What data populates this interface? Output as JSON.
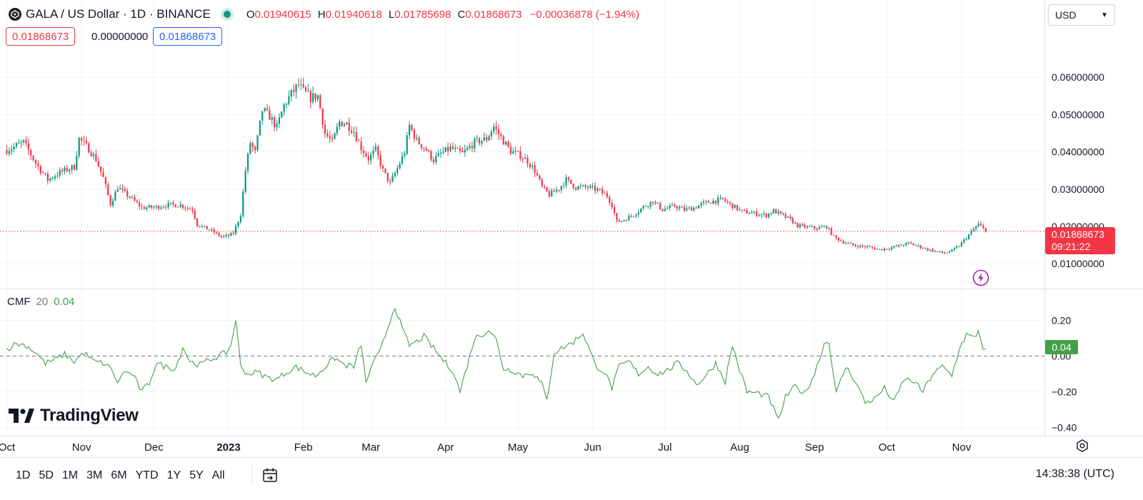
{
  "header": {
    "title": "GALA / US Dollar · 1D · BINANCE",
    "ohlc": [
      {
        "k": "O",
        "v": "0.01940615"
      },
      {
        "k": "H",
        "v": "0.01940618"
      },
      {
        "k": "L",
        "v": "0.01785698"
      },
      {
        "k": "C",
        "v": "0.01868673"
      }
    ],
    "change": "−0.00036878 (−1.94%)",
    "pill_bid": "0.01868673",
    "pill_spread": "0.00000000",
    "pill_ask": "0.01868673",
    "currency": "USD",
    "status_color": "#089981"
  },
  "price_tag": {
    "price": "0.01868673",
    "countdown": "09:21:22"
  },
  "cmf": {
    "label": "CMF",
    "length": "20",
    "value": "0.04",
    "tag": "0.04"
  },
  "logo": {
    "text": "TradingView"
  },
  "bottom_bar": {
    "ranges": [
      "1D",
      "5D",
      "1M",
      "3M",
      "6M",
      "YTD",
      "1Y",
      "5Y",
      "All"
    ],
    "clock": "14:38:38 (UTC)"
  },
  "icons": {
    "symbol": "gala-logo-icon",
    "calendar": "calendar-range-icon",
    "bolt": "bolt-icon",
    "settings": "settings-icon"
  },
  "colors": {
    "up": "#089981",
    "down": "#f23645",
    "cmf_line": "#43a047",
    "current_price": "#f23645"
  },
  "chart_data": [
    {
      "type": "candlestick",
      "title": "GALA / US Dollar · 1D · BINANCE",
      "y_ticks": [
        "0.06000000",
        "0.05000000",
        "0.04000000",
        "0.03000000",
        "0.02000000",
        "0.01000000"
      ],
      "y_tick_values": [
        0.06,
        0.05,
        0.04,
        0.03,
        0.02,
        0.01
      ],
      "ylim": [
        0.0065,
        0.0695
      ],
      "x_ticks": [
        {
          "label": "Oct",
          "day": -92
        },
        {
          "label": "Nov",
          "day": -61
        },
        {
          "label": "Dec",
          "day": -31
        },
        {
          "label": "2023",
          "day": 0,
          "bold": true
        },
        {
          "label": "Feb",
          "day": 31
        },
        {
          "label": "Mar",
          "day": 59
        },
        {
          "label": "Apr",
          "day": 90
        },
        {
          "label": "May",
          "day": 120
        },
        {
          "label": "Jun",
          "day": 151
        },
        {
          "label": "Jul",
          "day": 181
        },
        {
          "label": "Aug",
          "day": 212
        },
        {
          "label": "Sep",
          "day": 243
        },
        {
          "label": "Oct",
          "day": 273
        },
        {
          "label": "Nov",
          "day": 304
        }
      ],
      "x_day_index_origin": "2023-01-01",
      "current_price": 0.01868673,
      "closes_key": [
        [
          -92,
          0.0405
        ],
        [
          -85,
          0.0425
        ],
        [
          -80,
          0.037
        ],
        [
          -75,
          0.0325
        ],
        [
          -70,
          0.0345
        ],
        [
          -64,
          0.036
        ],
        [
          -62,
          0.0435
        ],
        [
          -58,
          0.0408
        ],
        [
          -55,
          0.038
        ],
        [
          -52,
          0.033
        ],
        [
          -49,
          0.026
        ],
        [
          -46,
          0.0305
        ],
        [
          -40,
          0.0273
        ],
        [
          -36,
          0.025
        ],
        [
          -30,
          0.0252
        ],
        [
          -25,
          0.0258
        ],
        [
          -20,
          0.0257
        ],
        [
          -15,
          0.0245
        ],
        [
          -13,
          0.0205
        ],
        [
          -7,
          0.0188
        ],
        [
          -3,
          0.0172
        ],
        [
          0,
          0.0175
        ],
        [
          2,
          0.0182
        ],
        [
          5,
          0.0232
        ],
        [
          7,
          0.035
        ],
        [
          9,
          0.0425
        ],
        [
          11,
          0.0398
        ],
        [
          14,
          0.0512
        ],
        [
          17,
          0.0495
        ],
        [
          20,
          0.0465
        ],
        [
          23,
          0.0525
        ],
        [
          26,
          0.0555
        ],
        [
          29,
          0.058
        ],
        [
          31,
          0.0562
        ],
        [
          34,
          0.0545
        ],
        [
          37,
          0.055
        ],
        [
          40,
          0.045
        ],
        [
          43,
          0.0425
        ],
        [
          46,
          0.048
        ],
        [
          49,
          0.0475
        ],
        [
          52,
          0.0455
        ],
        [
          55,
          0.041
        ],
        [
          58,
          0.0382
        ],
        [
          61,
          0.0405
        ],
        [
          64,
          0.035
        ],
        [
          67,
          0.0315
        ],
        [
          70,
          0.0355
        ],
        [
          73,
          0.04
        ],
        [
          75,
          0.047
        ],
        [
          78,
          0.043
        ],
        [
          82,
          0.0405
        ],
        [
          85,
          0.0378
        ],
        [
          88,
          0.0395
        ],
        [
          92,
          0.041
        ],
        [
          97,
          0.0395
        ],
        [
          102,
          0.0425
        ],
        [
          107,
          0.0435
        ],
        [
          110,
          0.0468
        ],
        [
          113,
          0.0438
        ],
        [
          117,
          0.0402
        ],
        [
          121,
          0.039
        ],
        [
          124,
          0.0375
        ],
        [
          127,
          0.035
        ],
        [
          130,
          0.0305
        ],
        [
          133,
          0.0285
        ],
        [
          137,
          0.0302
        ],
        [
          140,
          0.0325
        ],
        [
          144,
          0.0305
        ],
        [
          149,
          0.0305
        ],
        [
          153,
          0.0298
        ],
        [
          157,
          0.0282
        ],
        [
          159,
          0.0258
        ],
        [
          161,
          0.0212
        ],
        [
          164,
          0.0218
        ],
        [
          168,
          0.0232
        ],
        [
          172,
          0.0252
        ],
        [
          176,
          0.0268
        ],
        [
          180,
          0.0245
        ],
        [
          185,
          0.0255
        ],
        [
          189,
          0.0245
        ],
        [
          193,
          0.025
        ],
        [
          197,
          0.0262
        ],
        [
          201,
          0.0268
        ],
        [
          205,
          0.0272
        ],
        [
          209,
          0.0255
        ],
        [
          213,
          0.024
        ],
        [
          218,
          0.0235
        ],
        [
          223,
          0.023
        ],
        [
          226,
          0.0242
        ],
        [
          229,
          0.0232
        ],
        [
          233,
          0.0218
        ],
        [
          236,
          0.0202
        ],
        [
          240,
          0.0198
        ],
        [
          244,
          0.0195
        ],
        [
          248,
          0.02
        ],
        [
          251,
          0.0172
        ],
        [
          255,
          0.0158
        ],
        [
          260,
          0.0148
        ],
        [
          265,
          0.0145
        ],
        [
          270,
          0.0138
        ],
        [
          274,
          0.0142
        ],
        [
          278,
          0.0148
        ],
        [
          282,
          0.0155
        ],
        [
          286,
          0.0147
        ],
        [
          290,
          0.0138
        ],
        [
          294,
          0.0132
        ],
        [
          297,
          0.0128
        ],
        [
          300,
          0.0135
        ],
        [
          303,
          0.0148
        ],
        [
          306,
          0.017
        ],
        [
          309,
          0.0192
        ],
        [
          311,
          0.0205
        ],
        [
          313,
          0.0194
        ],
        [
          314,
          0.01868673
        ]
      ]
    },
    {
      "type": "line",
      "title": "CMF 20",
      "y_ticks": [
        "0.20",
        "0.00",
        "−0.20",
        "−0.40"
      ],
      "y_tick_values": [
        0.2,
        0.0,
        -0.2,
        -0.4
      ],
      "ylim": [
        -0.41,
        0.29
      ],
      "zero_line": true,
      "values_key": [
        [
          -92,
          0.04
        ],
        [
          -88,
          0.07
        ],
        [
          -84,
          0.06
        ],
        [
          -80,
          0.02
        ],
        [
          -76,
          -0.04
        ],
        [
          -72,
          -0.02
        ],
        [
          -68,
          0.01
        ],
        [
          -64,
          -0.03
        ],
        [
          -60,
          0.02
        ],
        [
          -56,
          -0.03
        ],
        [
          -52,
          -0.04
        ],
        [
          -48,
          -0.08
        ],
        [
          -46,
          -0.16
        ],
        [
          -44,
          -0.09
        ],
        [
          -40,
          -0.1
        ],
        [
          -36,
          -0.2
        ],
        [
          -33,
          -0.15
        ],
        [
          -30,
          -0.04
        ],
        [
          -26,
          -0.06
        ],
        [
          -22,
          -0.07
        ],
        [
          -19,
          0.05
        ],
        [
          -16,
          -0.03
        ],
        [
          -12,
          -0.05
        ],
        [
          -8,
          -0.02
        ],
        [
          -4,
          0.0
        ],
        [
          -1,
          0.02
        ],
        [
          1,
          0.06
        ],
        [
          3,
          0.21
        ],
        [
          5,
          -0.06
        ],
        [
          8,
          -0.1
        ],
        [
          12,
          -0.09
        ],
        [
          16,
          -0.12
        ],
        [
          20,
          -0.13
        ],
        [
          24,
          -0.09
        ],
        [
          28,
          -0.06
        ],
        [
          32,
          -0.09
        ],
        [
          36,
          -0.11
        ],
        [
          40,
          -0.06
        ],
        [
          44,
          -0.01
        ],
        [
          48,
          -0.05
        ],
        [
          52,
          -0.06
        ],
        [
          55,
          0.07
        ],
        [
          57,
          -0.16
        ],
        [
          59,
          -0.06
        ],
        [
          61,
          -0.02
        ],
        [
          63,
          0.03
        ],
        [
          66,
          0.16
        ],
        [
          69,
          0.28
        ],
        [
          72,
          0.15
        ],
        [
          75,
          0.06
        ],
        [
          78,
          0.08
        ],
        [
          81,
          0.11
        ],
        [
          84,
          0.06
        ],
        [
          87,
          0.01
        ],
        [
          90,
          -0.04
        ],
        [
          93,
          -0.08
        ],
        [
          96,
          -0.2
        ],
        [
          99,
          -0.05
        ],
        [
          102,
          0.1
        ],
        [
          105,
          0.12
        ],
        [
          108,
          0.15
        ],
        [
          111,
          0.09
        ],
        [
          114,
          -0.07
        ],
        [
          118,
          -0.08
        ],
        [
          122,
          -0.11
        ],
        [
          126,
          -0.09
        ],
        [
          130,
          -0.16
        ],
        [
          132,
          -0.25
        ],
        [
          135,
          0.02
        ],
        [
          139,
          0.05
        ],
        [
          143,
          0.08
        ],
        [
          147,
          0.13
        ],
        [
          149,
          0.06
        ],
        [
          152,
          -0.05
        ],
        [
          156,
          -0.09
        ],
        [
          159,
          -0.18
        ],
        [
          162,
          -0.06
        ],
        [
          166,
          -0.03
        ],
        [
          170,
          -0.1
        ],
        [
          174,
          -0.06
        ],
        [
          178,
          -0.1
        ],
        [
          182,
          -0.08
        ],
        [
          186,
          -0.04
        ],
        [
          190,
          -0.08
        ],
        [
          194,
          -0.16
        ],
        [
          198,
          -0.11
        ],
        [
          202,
          -0.04
        ],
        [
          206,
          -0.14
        ],
        [
          209,
          0.06
        ],
        [
          212,
          -0.08
        ],
        [
          215,
          -0.2
        ],
        [
          220,
          -0.21
        ],
        [
          224,
          -0.23
        ],
        [
          228,
          -0.36
        ],
        [
          231,
          -0.23
        ],
        [
          235,
          -0.17
        ],
        [
          239,
          -0.21
        ],
        [
          243,
          -0.1
        ],
        [
          247,
          0.07
        ],
        [
          249,
          0.08
        ],
        [
          252,
          -0.21
        ],
        [
          256,
          -0.06
        ],
        [
          260,
          -0.14
        ],
        [
          264,
          -0.26
        ],
        [
          268,
          -0.24
        ],
        [
          272,
          -0.18
        ],
        [
          276,
          -0.26
        ],
        [
          280,
          -0.13
        ],
        [
          284,
          -0.14
        ],
        [
          288,
          -0.2
        ],
        [
          292,
          -0.1
        ],
        [
          296,
          -0.06
        ],
        [
          300,
          -0.11
        ],
        [
          303,
          0.04
        ],
        [
          306,
          0.12
        ],
        [
          309,
          0.1
        ],
        [
          311,
          0.14
        ],
        [
          313,
          0.05
        ],
        [
          314,
          0.04
        ]
      ]
    }
  ]
}
